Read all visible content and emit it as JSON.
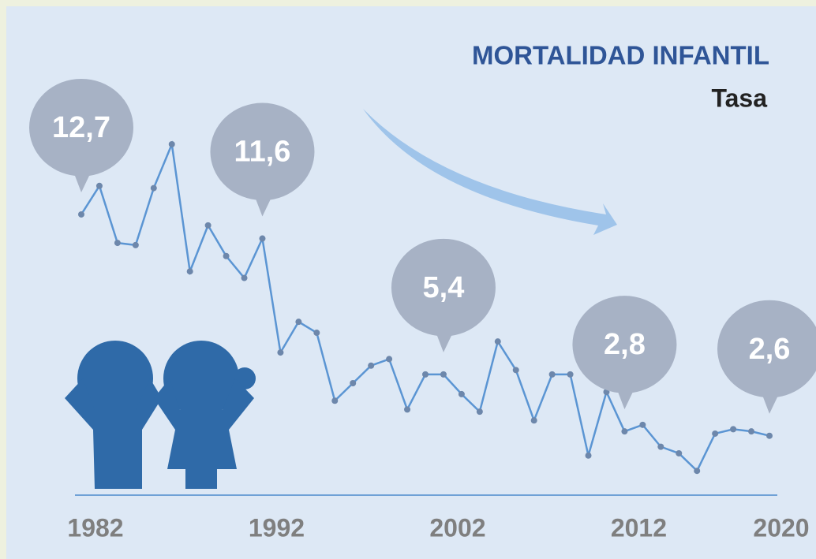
{
  "chart_data": {
    "type": "line",
    "title": "MORTALIDAD INFANTIL",
    "subtitle": "Tasa",
    "x": [
      1982,
      1983,
      1984,
      1985,
      1986,
      1987,
      1988,
      1989,
      1990,
      1991,
      1992,
      1993,
      1994,
      1995,
      1996,
      1997,
      1998,
      1999,
      2000,
      2001,
      2002,
      2003,
      2004,
      2005,
      2006,
      2007,
      2008,
      2009,
      2010,
      2011,
      2012,
      2013,
      2014,
      2015,
      2016,
      2017,
      2018,
      2019,
      2020
    ],
    "series": [
      {
        "color": "#5b95d3",
        "values": [
          12.7,
          14.0,
          11.4,
          11.3,
          13.9,
          15.9,
          10.1,
          12.2,
          10.8,
          9.8,
          11.6,
          6.4,
          7.8,
          7.3,
          4.2,
          5.0,
          5.8,
          6.1,
          3.8,
          5.4,
          5.4,
          4.5,
          3.7,
          6.9,
          5.6,
          3.3,
          5.4,
          5.4,
          1.7,
          4.6,
          2.8,
          3.1,
          2.1,
          1.8,
          1.0,
          2.7,
          2.9,
          2.8,
          2.6
        ],
        "value_labels": [
          "12,7",
          null,
          null,
          null,
          null,
          null,
          null,
          null,
          null,
          null,
          "11,6",
          null,
          null,
          null,
          null,
          null,
          null,
          null,
          null,
          null,
          "5,4",
          null,
          null,
          null,
          null,
          null,
          null,
          null,
          null,
          null,
          "2,8",
          null,
          null,
          null,
          null,
          null,
          null,
          null,
          "2,6"
        ]
      }
    ],
    "xlim": [
      1982,
      2020
    ],
    "xticks": [
      1982,
      1992,
      2002,
      2012,
      2020
    ],
    "ylim": [
      0,
      22
    ],
    "grid": false
  }
}
